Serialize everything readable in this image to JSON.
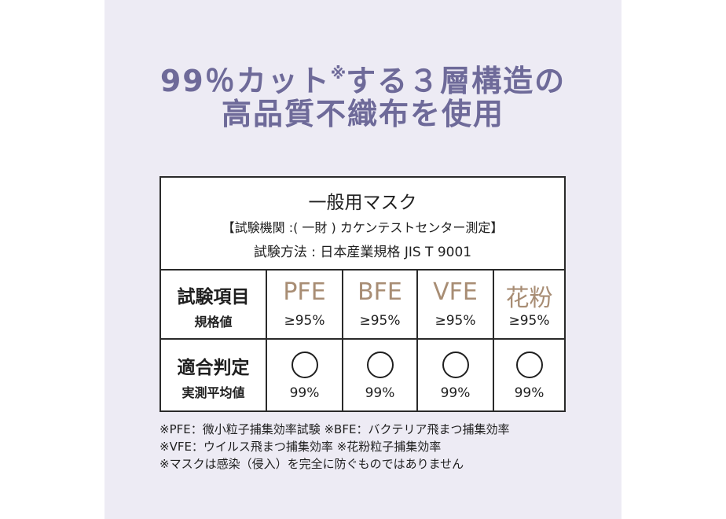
{
  "headline": {
    "line1_before": "99％カット",
    "line1_mark": "※",
    "line1_after": "する３層構造の",
    "line2": "高品質不織布を使用"
  },
  "colors": {
    "background_panel": "#edebf4",
    "headline": "#6e6a99",
    "metric_accent": "#a88d74",
    "text": "#1f1f1f"
  },
  "table": {
    "title": "一般用マスク",
    "org": "【試験機関 :( 一財 ) カケンテストセンター測定】",
    "method": "試験方法 : 日本産業規格 JIS T 9001",
    "row1": {
      "label_main": "試験項目",
      "label_sub": "規格値",
      "items": [
        {
          "name": "PFE",
          "standard": "≥95%"
        },
        {
          "name": "BFE",
          "standard": "≥95%"
        },
        {
          "name": "VFE",
          "standard": "≥95%"
        },
        {
          "name": "花粉",
          "standard": "≥95%"
        }
      ]
    },
    "row2": {
      "label_main": "適合判定",
      "label_sub": "実測平均値",
      "results": [
        {
          "mark": "circle-mark",
          "value": "99%"
        },
        {
          "mark": "circle-mark",
          "value": "99%"
        },
        {
          "mark": "circle-mark",
          "value": "99%"
        },
        {
          "mark": "circle-mark",
          "value": "99%"
        }
      ]
    }
  },
  "notes": [
    "※PFE：微小粒子捕集効率試験 ※BFE：バクテリア飛まつ捕集効率",
    "※VFE：ウイルス飛まつ捕集効率 ※花粉粒子捕集効率",
    "※マスクは感染（侵入）を完全に防ぐものではありません"
  ]
}
